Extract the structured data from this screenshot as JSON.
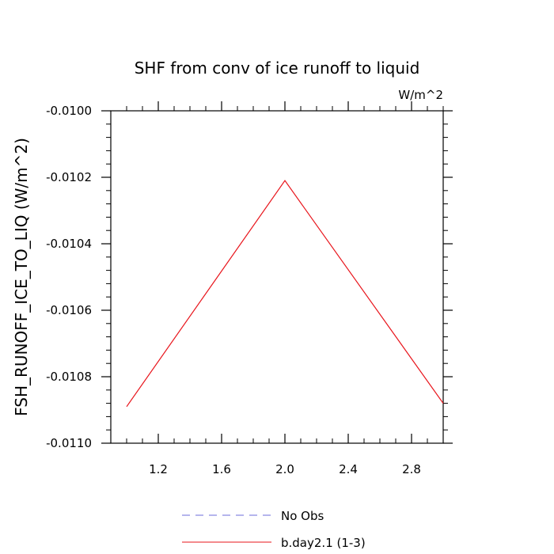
{
  "chart_data": {
    "type": "line",
    "title": "SHF from conv of ice runoff to liquid",
    "units_label": "W/m^2",
    "ylabel": "FSH_RUNOFF_ICE_TO_LIQ  (W/m^2)",
    "xlabel": "",
    "xlim": [
      0.9,
      3.0
    ],
    "ylim": [
      -0.011,
      -0.01
    ],
    "x_ticks": [
      {
        "value": 1.2,
        "label": "1.2"
      },
      {
        "value": 1.6,
        "label": "1.6"
      },
      {
        "value": 2.0,
        "label": "2.0"
      },
      {
        "value": 2.4,
        "label": "2.4"
      },
      {
        "value": 2.8,
        "label": "2.8"
      }
    ],
    "y_ticks": [
      {
        "value": -0.01,
        "label": "-0.0100"
      },
      {
        "value": -0.0102,
        "label": "-0.0102"
      },
      {
        "value": -0.0104,
        "label": "-0.0104"
      },
      {
        "value": -0.0106,
        "label": "-0.0106"
      },
      {
        "value": -0.0108,
        "label": "-0.0108"
      },
      {
        "value": -0.011,
        "label": "-0.0110"
      }
    ],
    "grid": false,
    "legend_position": "bottom",
    "series": [
      {
        "name": "b.day2.1 (1-3)",
        "color": "#e8141b",
        "x": [
          1.0,
          2.0,
          3.0
        ],
        "y": [
          -0.01089,
          -0.01021,
          -0.01088
        ]
      }
    ],
    "legend": [
      {
        "label": "No Obs",
        "color": "#6b6bdb",
        "style": "dashed"
      },
      {
        "label": "b.day2.1 (1-3)",
        "color": "#e8141b",
        "style": "solid"
      }
    ]
  }
}
